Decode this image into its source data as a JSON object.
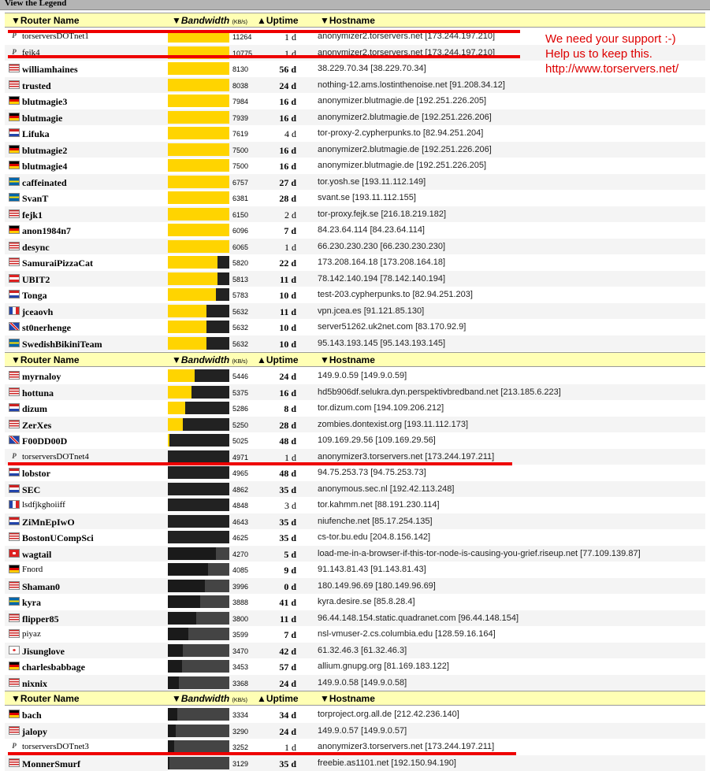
{
  "page": {
    "legend_label": "View the Legend"
  },
  "columns": {
    "router": "▼Router Name",
    "bandwidth": "Bandwidth",
    "bandwidth_unit": "(KB/s)",
    "uptime": "▲Uptime",
    "hostname": "▼Hostname"
  },
  "note": {
    "line1": "We need your support :-)",
    "line2": "Help us to keep this.",
    "line3": "http://www.torservers.net/"
  },
  "colors": {
    "bar_fill": "#ffd400",
    "bar_empty": "#222222",
    "header_bg": "#ffffb4",
    "annotation": "#ee0000"
  },
  "groups": [
    {
      "rows": [
        {
          "flag": "p",
          "name": "torserversDOTnet1",
          "bw": "11264",
          "fill": 1.0,
          "uptime": "1 d",
          "host": "anonymizer2.torservers.net [173.244.197.210]",
          "marked": true
        },
        {
          "flag": "p",
          "name": "fejk4",
          "bw": "10775",
          "fill": 1.0,
          "uptime": "1 d",
          "host": "anonymizer2.torservers.net [173.244.197.210]",
          "marked": true
        },
        {
          "flag": "us",
          "name": "williamhaines",
          "bw": "8130",
          "fill": 1.0,
          "uptime": "56 d",
          "host": "38.229.70.34 [38.229.70.34]"
        },
        {
          "flag": "us",
          "name": "trusted",
          "bw": "8038",
          "fill": 1.0,
          "uptime": "24 d",
          "host": "nothing-12.ams.lostinthenoise.net [91.208.34.12]"
        },
        {
          "flag": "de",
          "name": "blutmagie3",
          "bw": "7984",
          "fill": 1.0,
          "uptime": "16 d",
          "host": "anonymizer.blutmagie.de [192.251.226.205]"
        },
        {
          "flag": "de",
          "name": "blutmagie",
          "bw": "7939",
          "fill": 1.0,
          "uptime": "16 d",
          "host": "anonymizer2.blutmagie.de [192.251.226.206]"
        },
        {
          "flag": "nl",
          "name": "Lifuka",
          "bw": "7619",
          "fill": 1.0,
          "uptime": "4 d",
          "host": "tor-proxy-2.cypherpunks.to [82.94.251.204]"
        },
        {
          "flag": "de",
          "name": "blutmagie2",
          "bw": "7500",
          "fill": 1.0,
          "uptime": "16 d",
          "host": "anonymizer2.blutmagie.de [192.251.226.206]"
        },
        {
          "flag": "de",
          "name": "blutmagie4",
          "bw": "7500",
          "fill": 1.0,
          "uptime": "16 d",
          "host": "anonymizer.blutmagie.de [192.251.226.205]"
        },
        {
          "flag": "se",
          "name": "caffeinated",
          "bw": "6757",
          "fill": 1.0,
          "uptime": "27 d",
          "host": "tor.yosh.se [193.11.112.149]"
        },
        {
          "flag": "se",
          "name": "SvanT",
          "bw": "6381",
          "fill": 1.0,
          "uptime": "28 d",
          "host": "svant.se [193.11.112.155]"
        },
        {
          "flag": "us",
          "name": "fejk1",
          "bw": "6150",
          "fill": 1.0,
          "uptime": "2 d",
          "host": "tor-proxy.fejk.se [216.18.219.182]"
        },
        {
          "flag": "de",
          "name": "anon1984n7",
          "bw": "6096",
          "fill": 1.0,
          "uptime": "7 d",
          "host": "84.23.64.114 [84.23.64.114]"
        },
        {
          "flag": "us",
          "name": "desync",
          "bw": "6065",
          "fill": 1.0,
          "uptime": "1 d",
          "host": "66.230.230.230 [66.230.230.230]"
        },
        {
          "flag": "us",
          "name": "SamuraiPizzaCat",
          "bw": "5820",
          "fill": 0.81,
          "uptime": "22 d",
          "host": "173.208.164.18 [173.208.164.18]"
        },
        {
          "flag": "at",
          "name": "UBIT2",
          "bw": "5813",
          "fill": 0.81,
          "uptime": "11 d",
          "host": "78.142.140.194 [78.142.140.194]"
        },
        {
          "flag": "nl",
          "name": "Tonga",
          "bw": "5783",
          "fill": 0.78,
          "uptime": "10 d",
          "host": "test-203.cypherpunks.to [82.94.251.203]"
        },
        {
          "flag": "fr",
          "name": "jceaovh",
          "bw": "5632",
          "fill": 0.63,
          "uptime": "11 d",
          "host": "vpn.jcea.es [91.121.85.130]"
        },
        {
          "flag": "gb",
          "name": "st0nerhenge",
          "bw": "5632",
          "fill": 0.63,
          "uptime": "10 d",
          "host": "server51262.uk2net.com [83.170.92.9]"
        },
        {
          "flag": "se",
          "name": "SwedishBikiniTeam",
          "bw": "5632",
          "fill": 0.63,
          "uptime": "10 d",
          "host": "95.143.193.145 [95.143.193.145]"
        }
      ]
    },
    {
      "rows": [
        {
          "flag": "us",
          "name": "myrnaloy",
          "bw": "5446",
          "fill": 0.44,
          "uptime": "24 d",
          "host": "149.9.0.59 [149.9.0.59]"
        },
        {
          "flag": "us",
          "name": "hottuna",
          "bw": "5375",
          "fill": 0.38,
          "uptime": "16 d",
          "host": "hd5b906df.selukra.dyn.perspektivbredband.net [213.185.6.223]"
        },
        {
          "flag": "nl",
          "name": "dizum",
          "bw": "5286",
          "fill": 0.28,
          "uptime": "8 d",
          "host": "tor.dizum.com [194.109.206.212]"
        },
        {
          "flag": "us",
          "name": "ZerXes",
          "bw": "5250",
          "fill": 0.24,
          "uptime": "28 d",
          "host": "zombies.dontexist.org [193.11.112.173]"
        },
        {
          "flag": "gb",
          "name": "F00DD00D",
          "bw": "5025",
          "fill": 0.03,
          "uptime": "48 d",
          "host": "109.169.29.56 [109.169.29.56]"
        },
        {
          "flag": "p",
          "name": "torserversDOTnet4",
          "bw": "4971",
          "fill": 0.0,
          "uptime": "1 d",
          "host": "anonymizer3.torservers.net [173.244.197.211]",
          "marked": true
        },
        {
          "flag": "nl",
          "name": "lobstor",
          "bw": "4965",
          "fill": 0.0,
          "uptime": "48 d",
          "host": "94.75.253.73 [94.75.253.73]"
        },
        {
          "flag": "nl",
          "name": "SEC",
          "bw": "4862",
          "fill": 0.0,
          "uptime": "35 d",
          "host": "anonymous.sec.nl [192.42.113.248]"
        },
        {
          "flag": "fr",
          "name": "lsdfjkghoiiff",
          "bw": "4848",
          "fill": 0.0,
          "uptime": "3 d",
          "host": "tor.kahmm.net [88.191.230.114]"
        },
        {
          "flag": "nl",
          "name": "ZiMnEpIwO",
          "bw": "4643",
          "fill": 0.0,
          "uptime": "35 d",
          "host": "niufenche.net [85.17.254.135]"
        },
        {
          "flag": "us",
          "name": "BostonUCompSci",
          "bw": "4625",
          "fill": 0.0,
          "uptime": "35 d",
          "host": "cs-tor.bu.edu [204.8.156.142]"
        },
        {
          "flag": "ch",
          "name": "wagtail",
          "bw": "4270",
          "fill": 0.0,
          "uptime": "5 d",
          "host": "load-me-in-a-browser-if-this-tor-node-is-causing-you-grief.riseup.net [77.109.139.87]"
        },
        {
          "flag": "de",
          "name": "Fnord",
          "bw": "4085",
          "fill": 0.0,
          "uptime": "9 d",
          "host": "91.143.81.43 [91.143.81.43]"
        },
        {
          "flag": "us",
          "name": "Shaman0",
          "bw": "3996",
          "fill": 0.0,
          "uptime": "0 d",
          "host": "180.149.96.69 [180.149.96.69]"
        },
        {
          "flag": "se",
          "name": "kyra",
          "bw": "3888",
          "fill": 0.0,
          "uptime": "41 d",
          "host": "kyra.desire.se [85.8.28.4]"
        },
        {
          "flag": "us",
          "name": "flipper85",
          "bw": "3800",
          "fill": 0.0,
          "uptime": "11 d",
          "host": "96.44.148.154.static.quadranet.com [96.44.148.154]"
        },
        {
          "flag": "us",
          "name": "piyaz",
          "bw": "3599",
          "fill": 0.0,
          "uptime": "7 d",
          "host": "nsl-vmuser-2.cs.columbia.edu [128.59.16.164]"
        },
        {
          "flag": "kr",
          "name": "Jisunglove",
          "bw": "3470",
          "fill": 0.0,
          "uptime": "42 d",
          "host": "61.32.46.3 [61.32.46.3]"
        },
        {
          "flag": "de",
          "name": "charlesbabbage",
          "bw": "3453",
          "fill": 0.0,
          "uptime": "57 d",
          "host": "allium.gnupg.org [81.169.183.122]"
        },
        {
          "flag": "us",
          "name": "nixnix",
          "bw": "3368",
          "fill": 0.0,
          "uptime": "24 d",
          "host": "149.9.0.58 [149.9.0.58]"
        }
      ]
    },
    {
      "rows": [
        {
          "flag": "de",
          "name": "bach",
          "bw": "3334",
          "fill": 0.0,
          "uptime": "34 d",
          "host": "torproject.org.all.de [212.42.236.140]"
        },
        {
          "flag": "us",
          "name": "jalopy",
          "bw": "3290",
          "fill": 0.0,
          "uptime": "24 d",
          "host": "149.9.0.57 [149.9.0.57]"
        },
        {
          "flag": "p",
          "name": "torserversDOTnet3",
          "bw": "3252",
          "fill": 0.0,
          "uptime": "1 d",
          "host": "anonymizer3.torservers.net [173.244.197.211]",
          "marked": true
        },
        {
          "flag": "us",
          "name": "MonnerSmurf",
          "bw": "3129",
          "fill": 0.0,
          "uptime": "35 d",
          "host": "freebie.as1101.net [192.150.94.190]"
        }
      ]
    }
  ]
}
